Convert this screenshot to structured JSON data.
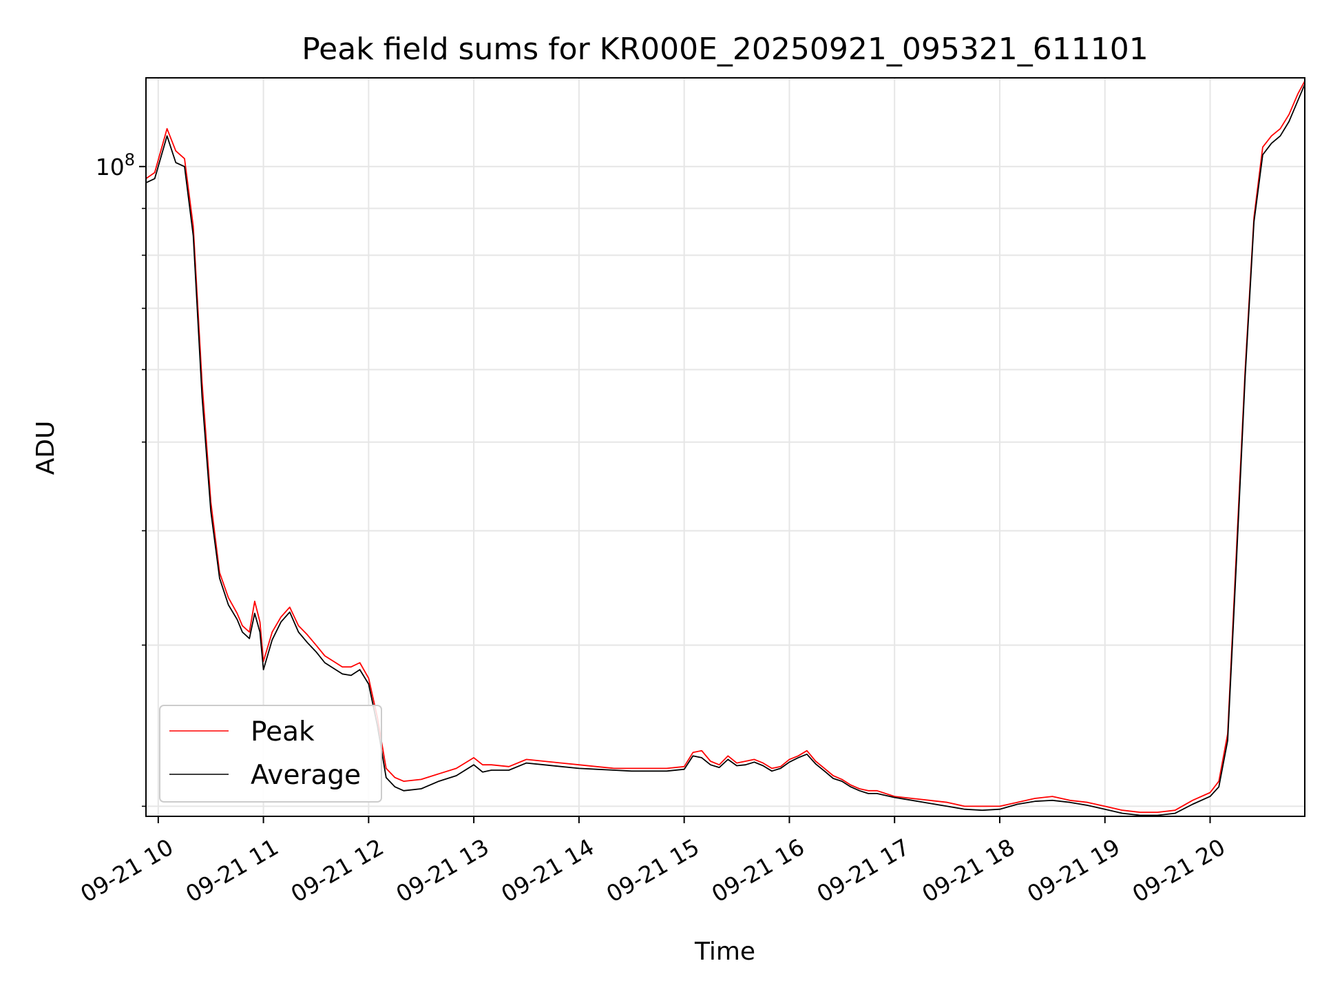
{
  "chart_data": {
    "type": "line",
    "title": "Peak field sums for KR000E_20250921_095321_611101",
    "xlabel": "Time",
    "ylabel": "ADU",
    "y_scale": "log",
    "grid": true,
    "legend_placement": "lower-left",
    "x_range": [
      "09-21 09:53",
      "09-21 20:54"
    ],
    "ylim": [
      19500000,
      125000000
    ],
    "x_ticks": [
      "09-21 10",
      "09-21 11",
      "09-21 12",
      "09-21 13",
      "09-21 14",
      "09-21 15",
      "09-21 16",
      "09-21 17",
      "09-21 18",
      "09-21 19",
      "09-21 20"
    ],
    "y_ticks": [
      {
        "value": 100000000,
        "label_base": "10",
        "label_exp": "8"
      }
    ],
    "series": [
      {
        "name": "Peak",
        "color": "#ff0000",
        "x": [
          "09-21 09:53",
          "09-21 09:58",
          "09-21 10:05",
          "09-21 10:10",
          "09-21 10:15",
          "09-21 10:20",
          "09-21 10:25",
          "09-21 10:30",
          "09-21 10:35",
          "09-21 10:40",
          "09-21 10:45",
          "09-21 10:48",
          "09-21 10:52",
          "09-21 10:55",
          "09-21 10:58",
          "09-21 11:00",
          "09-21 11:05",
          "09-21 11:10",
          "09-21 11:15",
          "09-21 11:20",
          "09-21 11:25",
          "09-21 11:30",
          "09-21 11:35",
          "09-21 11:40",
          "09-21 11:45",
          "09-21 11:50",
          "09-21 11:55",
          "09-21 12:00",
          "09-21 12:05",
          "09-21 12:10",
          "09-21 12:15",
          "09-21 12:20",
          "09-21 12:30",
          "09-21 12:40",
          "09-21 12:50",
          "09-21 13:00",
          "09-21 13:05",
          "09-21 13:10",
          "09-21 13:20",
          "09-21 13:30",
          "09-21 13:40",
          "09-21 13:50",
          "09-21 14:00",
          "09-21 14:10",
          "09-21 14:20",
          "09-21 14:30",
          "09-21 14:40",
          "09-21 14:50",
          "09-21 15:00",
          "09-21 15:05",
          "09-21 15:10",
          "09-21 15:15",
          "09-21 15:20",
          "09-21 15:25",
          "09-21 15:30",
          "09-21 15:35",
          "09-21 15:40",
          "09-21 15:45",
          "09-21 15:50",
          "09-21 15:55",
          "09-21 16:00",
          "09-21 16:05",
          "09-21 16:10",
          "09-21 16:15",
          "09-21 16:20",
          "09-21 16:25",
          "09-21 16:30",
          "09-21 16:35",
          "09-21 16:40",
          "09-21 16:45",
          "09-21 16:50",
          "09-21 17:00",
          "09-21 17:10",
          "09-21 17:20",
          "09-21 17:30",
          "09-21 17:40",
          "09-21 17:50",
          "09-21 18:00",
          "09-21 18:10",
          "09-21 18:20",
          "09-21 18:30",
          "09-21 18:40",
          "09-21 18:50",
          "09-21 19:00",
          "09-21 19:10",
          "09-21 19:20",
          "09-21 19:30",
          "09-21 19:40",
          "09-21 19:50",
          "09-21 20:00",
          "09-21 20:05",
          "09-21 20:10",
          "09-21 20:15",
          "09-21 20:20",
          "09-21 20:25",
          "09-21 20:30",
          "09-21 20:35",
          "09-21 20:40",
          "09-21 20:45",
          "09-21 20:50",
          "09-21 20:54"
        ],
        "y": [
          97000000,
          98500000,
          110000000,
          104000000,
          102000000,
          86000000,
          58000000,
          43000000,
          36000000,
          33800000,
          32500000,
          31500000,
          31000000,
          33500000,
          31800000,
          28800000,
          31000000,
          32200000,
          33000000,
          31500000,
          30800000,
          30000000,
          29200000,
          28800000,
          28400000,
          28400000,
          28700000,
          27600000,
          25000000,
          22000000,
          21500000,
          21300000,
          21400000,
          21700000,
          22000000,
          22600000,
          22200000,
          22200000,
          22100000,
          22500000,
          22400000,
          22300000,
          22200000,
          22100000,
          22000000,
          22000000,
          22000000,
          22000000,
          22100000,
          22900000,
          23000000,
          22400000,
          22200000,
          22700000,
          22300000,
          22400000,
          22500000,
          22300000,
          22000000,
          22100000,
          22500000,
          22700000,
          23000000,
          22400000,
          22000000,
          21600000,
          21400000,
          21100000,
          20900000,
          20800000,
          20800000,
          20500000,
          20400000,
          20300000,
          20200000,
          20000000,
          20000000,
          20000000,
          20200000,
          20400000,
          20500000,
          20300000,
          20200000,
          20000000,
          19800000,
          19700000,
          19700000,
          19800000,
          20300000,
          20700000,
          21300000,
          24000000,
          38000000,
          60000000,
          88000000,
          105000000,
          108000000,
          110000000,
          114000000,
          120000000,
          124000000
        ]
      },
      {
        "name": "Average",
        "color": "#000000",
        "x": [
          "09-21 09:53",
          "09-21 09:58",
          "09-21 10:05",
          "09-21 10:10",
          "09-21 10:15",
          "09-21 10:20",
          "09-21 10:25",
          "09-21 10:30",
          "09-21 10:35",
          "09-21 10:40",
          "09-21 10:45",
          "09-21 10:48",
          "09-21 10:52",
          "09-21 10:55",
          "09-21 10:58",
          "09-21 11:00",
          "09-21 11:05",
          "09-21 11:10",
          "09-21 11:15",
          "09-21 11:20",
          "09-21 11:25",
          "09-21 11:30",
          "09-21 11:35",
          "09-21 11:40",
          "09-21 11:45",
          "09-21 11:50",
          "09-21 11:55",
          "09-21 12:00",
          "09-21 12:05",
          "09-21 12:10",
          "09-21 12:15",
          "09-21 12:20",
          "09-21 12:30",
          "09-21 12:40",
          "09-21 12:50",
          "09-21 13:00",
          "09-21 13:05",
          "09-21 13:10",
          "09-21 13:20",
          "09-21 13:30",
          "09-21 13:40",
          "09-21 13:50",
          "09-21 14:00",
          "09-21 14:10",
          "09-21 14:20",
          "09-21 14:30",
          "09-21 14:40",
          "09-21 14:50",
          "09-21 15:00",
          "09-21 15:05",
          "09-21 15:10",
          "09-21 15:15",
          "09-21 15:20",
          "09-21 15:25",
          "09-21 15:30",
          "09-21 15:35",
          "09-21 15:40",
          "09-21 15:45",
          "09-21 15:50",
          "09-21 15:55",
          "09-21 16:00",
          "09-21 16:05",
          "09-21 16:10",
          "09-21 16:15",
          "09-21 16:20",
          "09-21 16:25",
          "09-21 16:30",
          "09-21 16:35",
          "09-21 16:40",
          "09-21 16:45",
          "09-21 16:50",
          "09-21 17:00",
          "09-21 17:10",
          "09-21 17:20",
          "09-21 17:30",
          "09-21 17:40",
          "09-21 17:50",
          "09-21 18:00",
          "09-21 18:10",
          "09-21 18:20",
          "09-21 18:30",
          "09-21 18:40",
          "09-21 18:50",
          "09-21 19:00",
          "09-21 19:10",
          "09-21 19:20",
          "09-21 19:30",
          "09-21 19:40",
          "09-21 19:50",
          "09-21 20:00",
          "09-21 20:05",
          "09-21 20:10",
          "09-21 20:15",
          "09-21 20:20",
          "09-21 20:25",
          "09-21 20:30",
          "09-21 20:35",
          "09-21 20:40",
          "09-21 20:45",
          "09-21 20:50",
          "09-21 20:54"
        ],
        "y": [
          96000000,
          97000000,
          108000000,
          101000000,
          100000000,
          84000000,
          56000000,
          42000000,
          35500000,
          33200000,
          32000000,
          31000000,
          30500000,
          32500000,
          31000000,
          28200000,
          30400000,
          31800000,
          32600000,
          31000000,
          30200000,
          29500000,
          28700000,
          28300000,
          27900000,
          27800000,
          28200000,
          27200000,
          24500000,
          21500000,
          21000000,
          20800000,
          20900000,
          21300000,
          21600000,
          22200000,
          21800000,
          21900000,
          21900000,
          22300000,
          22200000,
          22100000,
          22000000,
          21950000,
          21900000,
          21850000,
          21850000,
          21850000,
          21950000,
          22700000,
          22600000,
          22200000,
          22050000,
          22500000,
          22150000,
          22200000,
          22350000,
          22150000,
          21850000,
          22000000,
          22350000,
          22600000,
          22800000,
          22250000,
          21850000,
          21450000,
          21300000,
          21000000,
          20800000,
          20650000,
          20650000,
          20450000,
          20300000,
          20150000,
          20000000,
          19850000,
          19800000,
          19850000,
          20100000,
          20250000,
          20300000,
          20200000,
          20050000,
          19850000,
          19650000,
          19550000,
          19550000,
          19650000,
          20100000,
          20500000,
          21000000,
          23600000,
          37000000,
          59000000,
          87000000,
          103000000,
          106000000,
          108000000,
          112000000,
          118000000,
          123000000
        ]
      }
    ]
  }
}
